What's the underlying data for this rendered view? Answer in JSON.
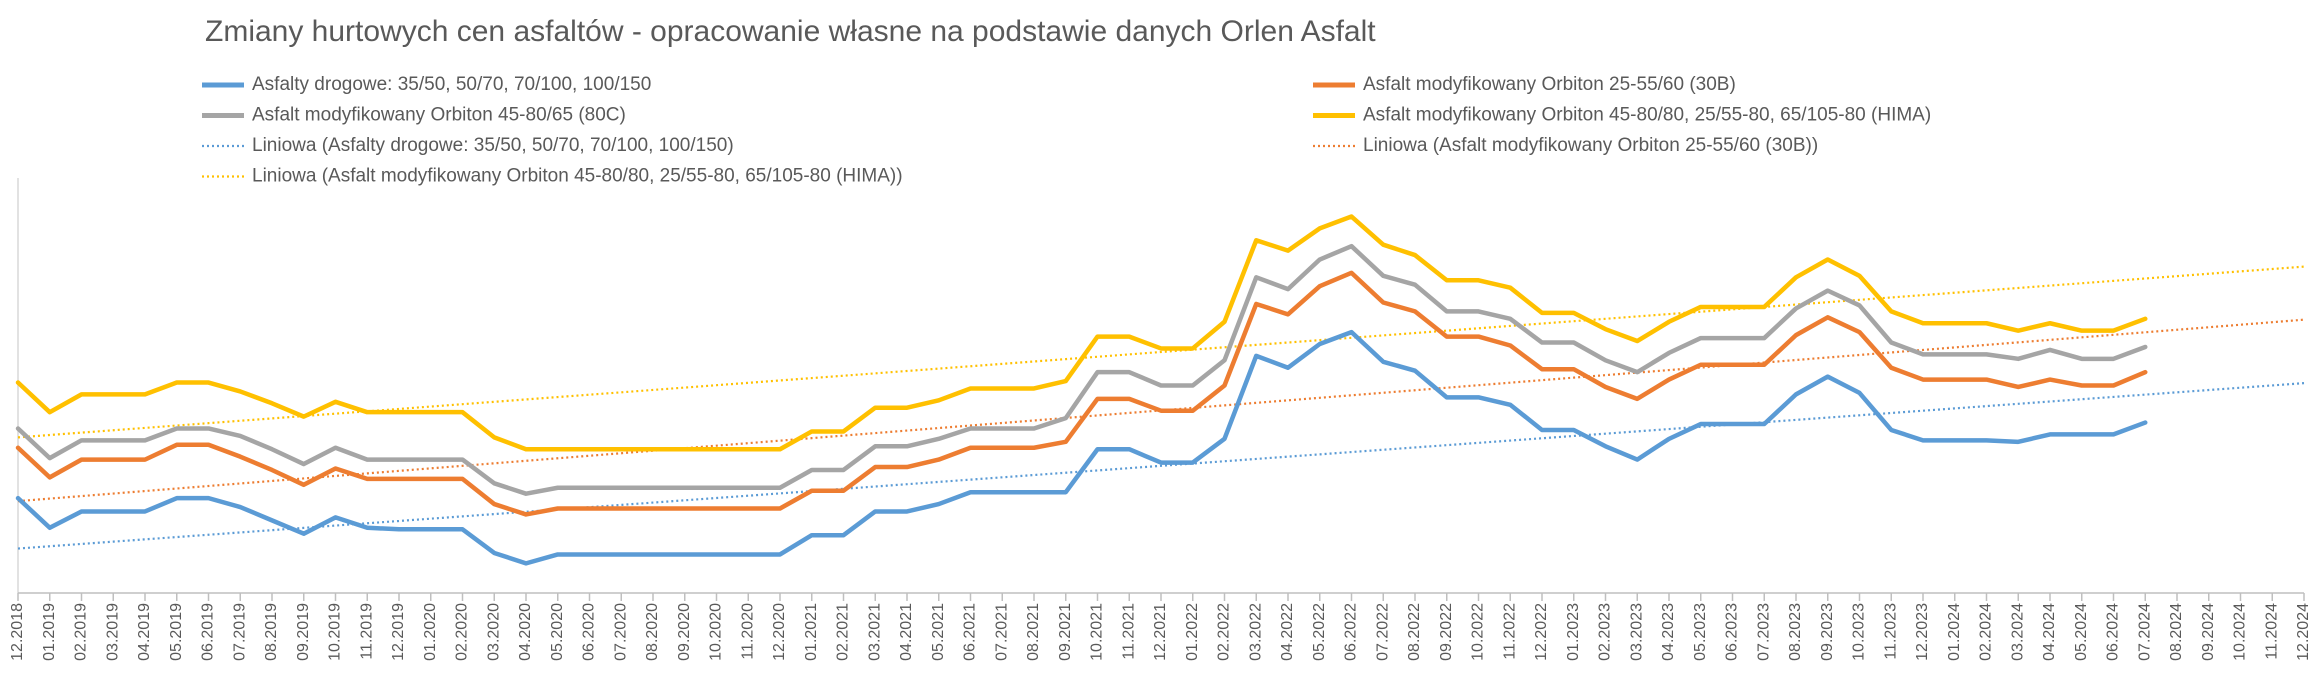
{
  "chart_data": {
    "type": "line",
    "title": "Zmiany hurtowych cen asfaltów - opracowanie własne na podstawie danych Orlen Asfalt",
    "categories": [
      "12.2018",
      "01.2019",
      "02.2019",
      "03.2019",
      "04.2019",
      "05.2019",
      "06.2019",
      "07.2019",
      "08.2019",
      "09.2019",
      "10.2019",
      "11.2019",
      "12.2019",
      "01.2020",
      "02.2020",
      "03.2020",
      "04.2020",
      "05.2020",
      "06.2020",
      "07.2020",
      "08.2020",
      "09.2020",
      "10.2020",
      "11.2020",
      "12.2020",
      "01.2021",
      "02.2021",
      "03.2021",
      "04.2021",
      "05.2021",
      "06.2021",
      "07.2021",
      "08.2021",
      "09.2021",
      "10.2021",
      "11.2021",
      "12.2021",
      "01.2022",
      "02.2022",
      "03.2022",
      "04.2022",
      "05.2022",
      "06.2022",
      "07.2022",
      "08.2022",
      "09.2022",
      "10.2022",
      "11.2022",
      "12.2022",
      "01.2023",
      "02.2023",
      "03.2023",
      "04.2023",
      "05.2023",
      "06.2023",
      "07.2023",
      "08.2023",
      "09.2023",
      "10.2023",
      "11.2023",
      "12.2023",
      "01.2024",
      "02.2024",
      "03.2024",
      "04.2024",
      "05.2024",
      "06.2024",
      "07.2024",
      "08.2024",
      "09.2024",
      "10.2024",
      "11.2024",
      "12.2024"
    ],
    "ylim": [
      1000,
      3800
    ],
    "series": [
      {
        "name": "Asfalty drogowe: 35/50, 50/70, 70/100, 100/150",
        "color": "#5b9bd5",
        "style": "solid",
        "values": [
          1640,
          1440,
          1550,
          1550,
          1550,
          1640,
          1640,
          1580,
          1490,
          1400,
          1510,
          1440,
          1430,
          1430,
          1430,
          1270,
          1200,
          1260,
          1260,
          1260,
          1260,
          1260,
          1260,
          1260,
          1260,
          1390,
          1390,
          1550,
          1550,
          1600,
          1680,
          1680,
          1680,
          1680,
          1970,
          1970,
          1880,
          1880,
          2040,
          2600,
          2520,
          2680,
          2760,
          2560,
          2500,
          2320,
          2320,
          2270,
          2100,
          2100,
          1990,
          1900,
          2040,
          2140,
          2140,
          2140,
          2340,
          2460,
          2350,
          2100,
          2030,
          2030,
          2030,
          2020,
          2070,
          2070,
          2070,
          2150,
          null,
          null,
          null,
          null,
          null
        ]
      },
      {
        "name": "Asfalt modyfikowany Orbiton 25-55/60 (30B)",
        "color": "#ed7d31",
        "style": "solid",
        "values": [
          1980,
          1780,
          1900,
          1900,
          1900,
          2000,
          2000,
          1920,
          1830,
          1730,
          1840,
          1770,
          1770,
          1770,
          1770,
          1600,
          1530,
          1570,
          1570,
          1570,
          1570,
          1570,
          1570,
          1570,
          1570,
          1690,
          1690,
          1850,
          1850,
          1900,
          1980,
          1980,
          1980,
          2020,
          2310,
          2310,
          2230,
          2230,
          2400,
          2950,
          2880,
          3070,
          3160,
          2960,
          2900,
          2730,
          2730,
          2670,
          2510,
          2510,
          2390,
          2310,
          2440,
          2540,
          2540,
          2540,
          2740,
          2860,
          2760,
          2520,
          2440,
          2440,
          2440,
          2390,
          2440,
          2400,
          2400,
          2490,
          null,
          null,
          null,
          null,
          null
        ]
      },
      {
        "name": "Asfalt modyfikowany Orbiton 45-80/65 (80C)",
        "color": "#a5a5a5",
        "style": "solid",
        "values": [
          2110,
          1910,
          2030,
          2030,
          2030,
          2110,
          2110,
          2060,
          1970,
          1870,
          1980,
          1900,
          1900,
          1900,
          1900,
          1740,
          1670,
          1710,
          1710,
          1710,
          1710,
          1710,
          1710,
          1710,
          1710,
          1830,
          1830,
          1990,
          1990,
          2040,
          2110,
          2110,
          2110,
          2180,
          2490,
          2490,
          2400,
          2400,
          2570,
          3130,
          3050,
          3250,
          3340,
          3140,
          3080,
          2900,
          2900,
          2850,
          2690,
          2690,
          2570,
          2490,
          2620,
          2720,
          2720,
          2720,
          2920,
          3040,
          2940,
          2690,
          2610,
          2610,
          2610,
          2580,
          2640,
          2580,
          2580,
          2660,
          null,
          null,
          null,
          null,
          null
        ]
      },
      {
        "name": "Asfalt modyfikowany Orbiton 45-80/80, 25/55-80, 65/105-80 (HIMA)",
        "color": "#ffc000",
        "style": "solid",
        "values": [
          2420,
          2220,
          2340,
          2340,
          2340,
          2420,
          2420,
          2360,
          2280,
          2190,
          2290,
          2220,
          2220,
          2220,
          2220,
          2050,
          1970,
          1970,
          1970,
          1970,
          1970,
          1970,
          1970,
          1970,
          1970,
          2090,
          2090,
          2250,
          2250,
          2300,
          2380,
          2380,
          2380,
          2430,
          2730,
          2730,
          2650,
          2650,
          2830,
          3380,
          3310,
          3460,
          3540,
          3350,
          3280,
          3110,
          3110,
          3060,
          2890,
          2890,
          2780,
          2700,
          2830,
          2930,
          2930,
          2930,
          3130,
          3250,
          3140,
          2900,
          2820,
          2820,
          2820,
          2770,
          2820,
          2770,
          2770,
          2850,
          null,
          null,
          null,
          null,
          null
        ]
      },
      {
        "name": "Liniowa (Asfalty drogowe: 35/50, 50/70, 70/100, 100/150)",
        "color": "#5b9bd5",
        "style": "dotted",
        "values": [
          1300,
          1315.5,
          1331,
          1346.5,
          1362,
          1377.5,
          1393,
          1408.5,
          1424,
          1439.5,
          1455,
          1470.5,
          1486,
          1501.5,
          1517,
          1532.5,
          1548,
          1563.5,
          1579,
          1594.5,
          1610,
          1625.5,
          1641,
          1656.5,
          1672,
          1687.5,
          1703,
          1718.5,
          1734,
          1749.5,
          1765,
          1780.5,
          1796,
          1811.5,
          1827,
          1842.5,
          1858,
          1873.5,
          1889,
          1904.5,
          1920,
          1935.5,
          1951,
          1966.5,
          1982,
          1997.5,
          2013,
          2028.5,
          2044,
          2059.5,
          2075,
          2090.5,
          2106,
          2121.5,
          2137,
          2152.5,
          2168,
          2183.5,
          2199,
          2214.5,
          2230,
          2245.5,
          2261,
          2276.5,
          2292,
          2307.5,
          2323,
          2338.5,
          2354,
          2369.5,
          2385,
          2400.5,
          2416
        ]
      },
      {
        "name": "Liniowa (Asfalt modyfikowany Orbiton 25-55/60 (30B))",
        "color": "#ed7d31",
        "style": "dotted",
        "values": [
          1620,
          1637,
          1654,
          1671,
          1688,
          1705,
          1722,
          1739,
          1756,
          1773,
          1790,
          1807,
          1824,
          1841,
          1858,
          1875,
          1892,
          1909,
          1926,
          1943,
          1960,
          1977,
          1994,
          2011,
          2028,
          2045,
          2062,
          2079,
          2096,
          2113,
          2130,
          2147,
          2164,
          2181,
          2198,
          2215,
          2232,
          2249,
          2266,
          2283,
          2300,
          2317,
          2334,
          2351,
          2368,
          2385,
          2402,
          2419,
          2436,
          2453,
          2470,
          2487,
          2504,
          2521,
          2538,
          2555,
          2572,
          2589,
          2606,
          2623,
          2640,
          2657,
          2674,
          2691,
          2708,
          2725,
          2742,
          2759,
          2776,
          2793,
          2810,
          2827,
          2844
        ]
      },
      {
        "name": "Liniowa (Asfalt modyfikowany Orbiton 45-80/80, 25/55-80, 65/105-80 (HIMA))",
        "color": "#ffc000",
        "style": "dotted",
        "values": [
          2050,
          2066,
          2082,
          2098,
          2114,
          2130,
          2146,
          2162,
          2178,
          2194,
          2210,
          2226,
          2242,
          2258,
          2274,
          2290,
          2306,
          2322,
          2338,
          2354,
          2370,
          2386,
          2402,
          2418,
          2434,
          2450,
          2466,
          2482,
          2498,
          2514,
          2530,
          2546,
          2562,
          2578,
          2594,
          2610,
          2626,
          2642,
          2658,
          2674,
          2690,
          2706,
          2722,
          2738,
          2754,
          2770,
          2786,
          2802,
          2818,
          2834,
          2850,
          2866,
          2882,
          2898,
          2914,
          2930,
          2946,
          2962,
          2978,
          2994,
          3010,
          3026,
          3042,
          3058,
          3074,
          3090,
          3106,
          3122,
          3138,
          3154,
          3170,
          3186,
          3202
        ]
      }
    ]
  }
}
